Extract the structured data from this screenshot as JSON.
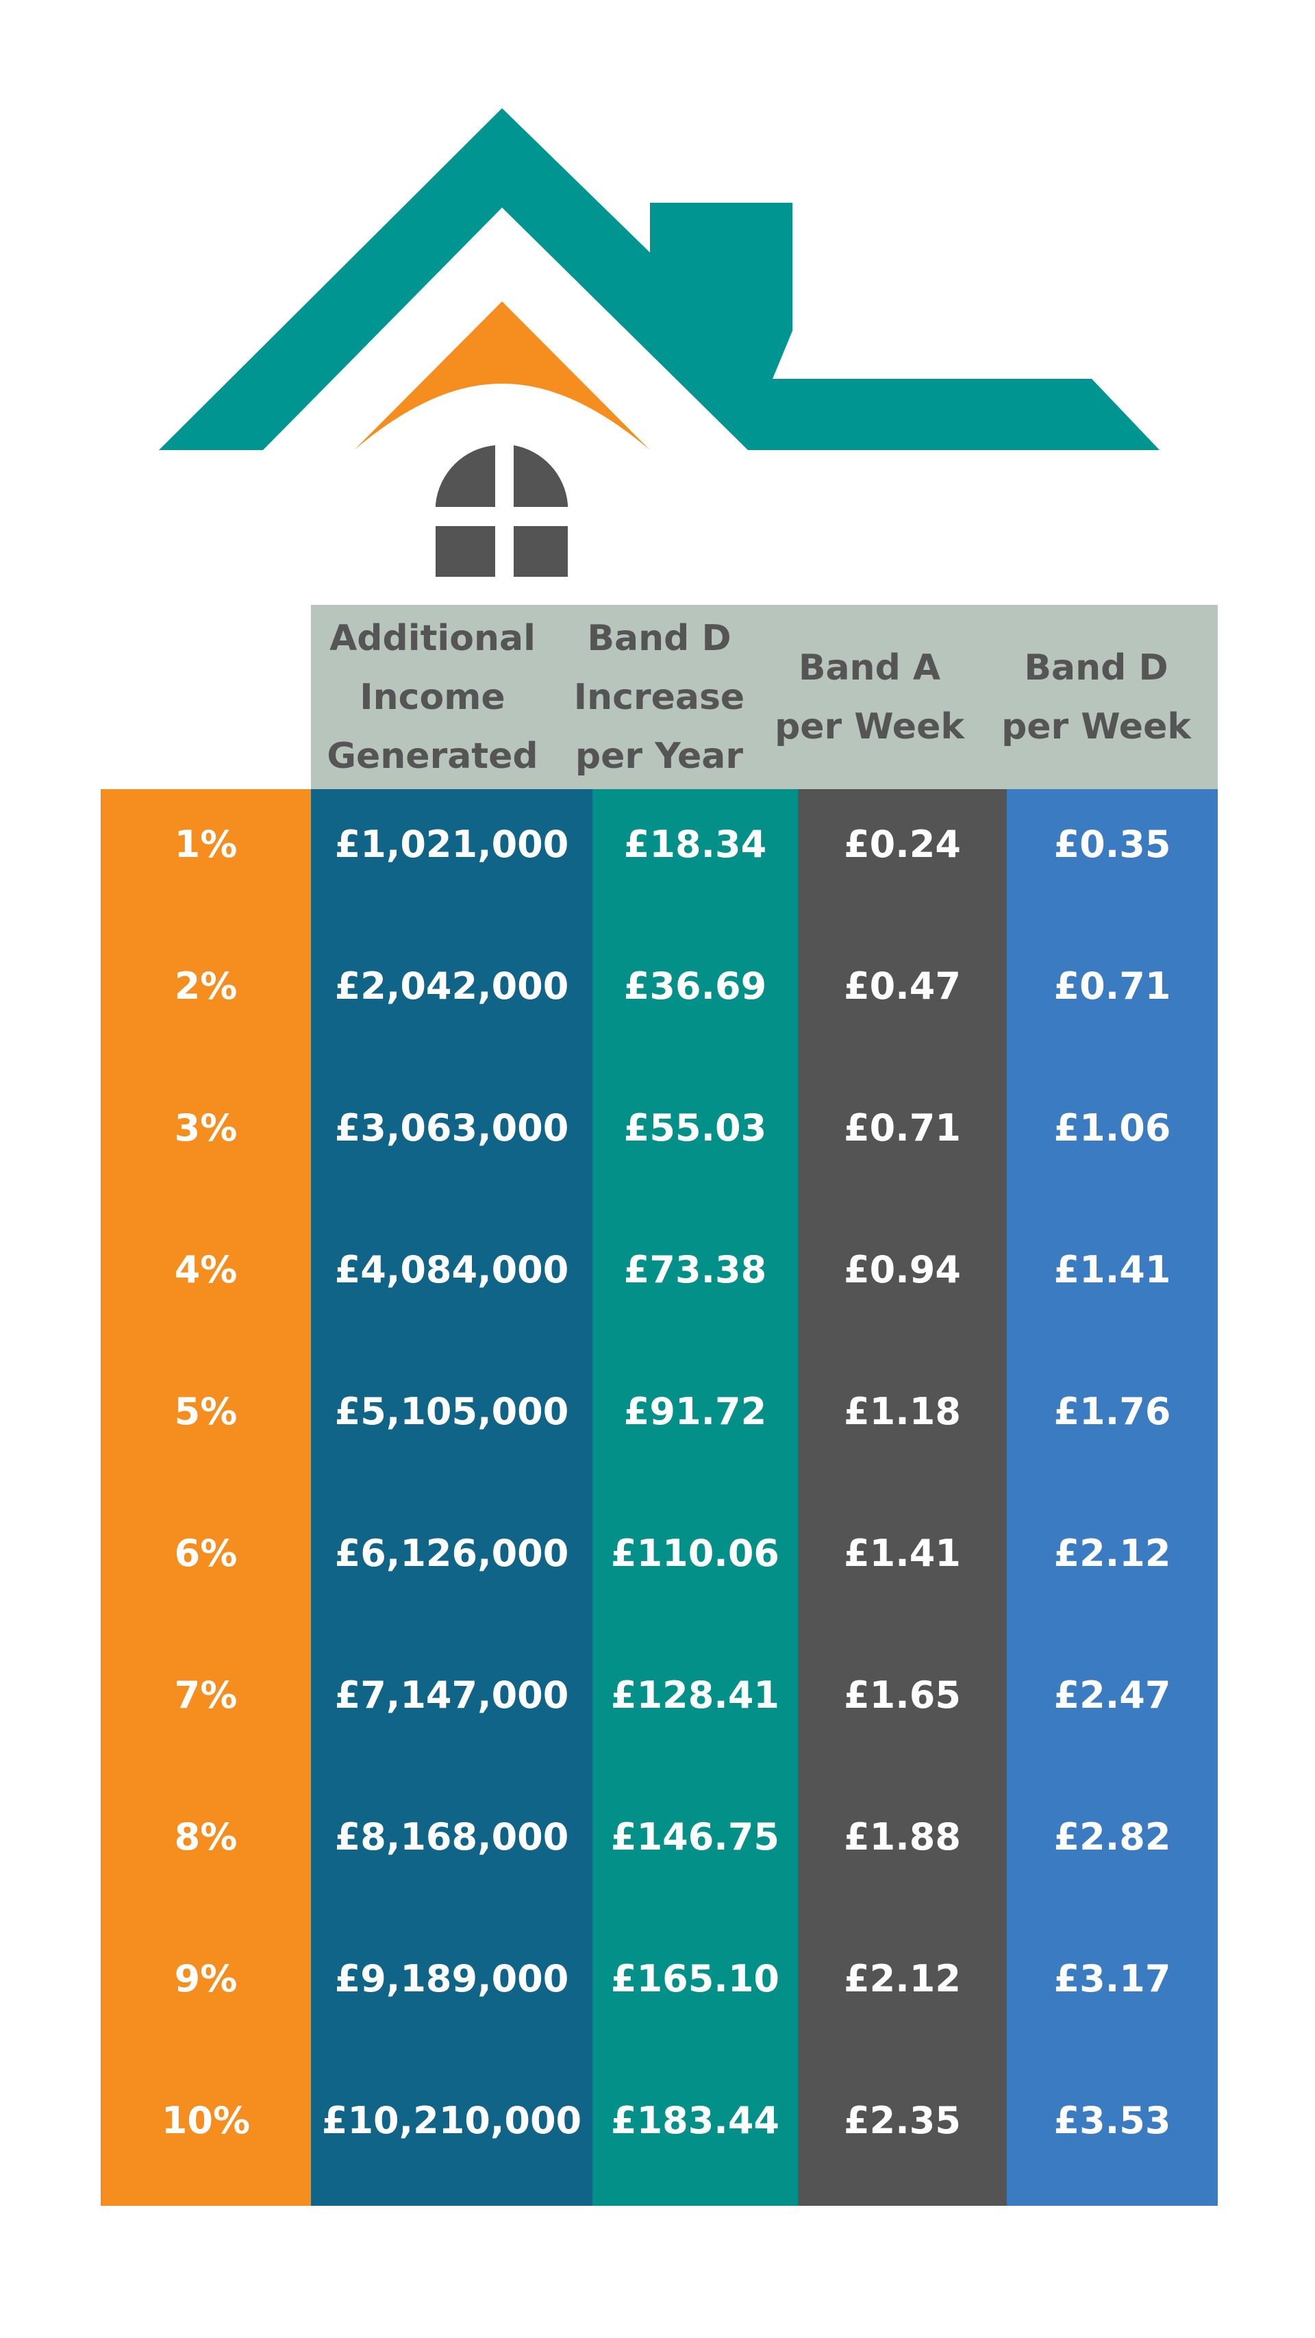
{
  "colors": {
    "roof": "#009590",
    "arch": "#f68d1f",
    "window": "#545454",
    "header_bg": "#b7c5bd",
    "header_text": "#555555",
    "col_percent": "#f68d1f",
    "col_income": "#0f6487",
    "col_band_d_year": "#029088",
    "col_band_a_week": "#545454",
    "col_band_d_week": "#3a7bc1"
  },
  "icons": [
    "house-roof-icon",
    "chimney-icon",
    "arch-icon",
    "window-icon"
  ],
  "headers": {
    "income": "Additional\nIncome\nGenerated",
    "band_d_year": "Band D\nIncrease\nper Year",
    "band_a_week": "Band A\nper Week",
    "band_d_week": "Band D\nper Week"
  },
  "rows": [
    {
      "pct": "1%",
      "income": "£1,021,000",
      "band_d_year": "£18.34",
      "band_a_week": "£0.24",
      "band_d_week": "£0.35"
    },
    {
      "pct": "2%",
      "income": "£2,042,000",
      "band_d_year": "£36.69",
      "band_a_week": "£0.47",
      "band_d_week": "£0.71"
    },
    {
      "pct": "3%",
      "income": "£3,063,000",
      "band_d_year": "£55.03",
      "band_a_week": "£0.71",
      "band_d_week": "£1.06"
    },
    {
      "pct": "4%",
      "income": "£4,084,000",
      "band_d_year": "£73.38",
      "band_a_week": "£0.94",
      "band_d_week": "£1.41"
    },
    {
      "pct": "5%",
      "income": "£5,105,000",
      "band_d_year": "£91.72",
      "band_a_week": "£1.18",
      "band_d_week": "£1.76"
    },
    {
      "pct": "6%",
      "income": "£6,126,000",
      "band_d_year": "£110.06",
      "band_a_week": "£1.41",
      "band_d_week": "£2.12"
    },
    {
      "pct": "7%",
      "income": "£7,147,000",
      "band_d_year": "£128.41",
      "band_a_week": "£1.65",
      "band_d_week": "£2.47"
    },
    {
      "pct": "8%",
      "income": "£8,168,000",
      "band_d_year": "£146.75",
      "band_a_week": "£1.88",
      "band_d_week": "£2.82"
    },
    {
      "pct": "9%",
      "income": "£9,189,000",
      "band_d_year": "£165.10",
      "band_a_week": "£2.12",
      "band_d_week": "£3.17"
    },
    {
      "pct": "10%",
      "income": "£10,210,000",
      "band_d_year": "£183.44",
      "band_a_week": "£2.35",
      "band_d_week": "£3.53"
    }
  ]
}
